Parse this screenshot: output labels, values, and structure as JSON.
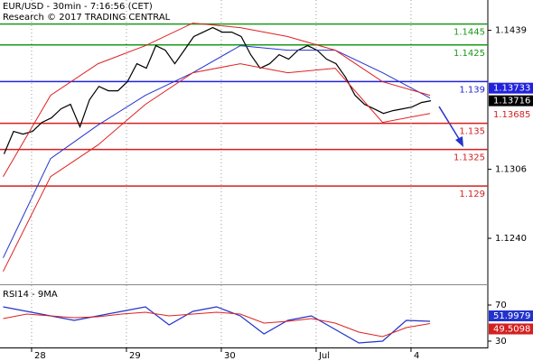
{
  "chart_data": [
    {
      "type": "line",
      "title": "EUR/USD - 30min - 7:16:56 (CET)",
      "subtitle": "Research © 2017 TRADING CENTRAL",
      "xlim": [
        -0.333,
        4.81
      ],
      "ylim": [
        1.1196,
        1.1468
      ],
      "yticks": [
        {
          "value": 1.124,
          "label": "1.1240"
        },
        1.1306,
        1.1439
      ],
      "series": [
        {
          "color": "#000000",
          "x": [
            -0.29,
            -0.19,
            -0.09,
            0.01,
            0.11,
            0.21,
            0.31,
            0.41,
            0.51,
            0.61,
            0.71,
            0.81,
            0.91,
            1.01,
            1.11,
            1.21,
            1.31,
            1.41,
            1.51,
            1.61,
            1.71,
            1.81,
            1.91,
            2.01,
            2.11,
            2.21,
            2.31,
            2.41,
            2.51,
            2.61,
            2.71,
            2.81,
            2.91,
            3.01,
            3.11,
            3.21,
            3.31,
            3.41,
            3.51,
            3.61,
            3.71,
            3.81,
            3.91,
            4.01,
            4.11,
            4.21
          ],
          "values": [
            1.13207,
            1.13423,
            1.13397,
            1.13423,
            1.13509,
            1.13552,
            1.13639,
            1.13682,
            1.13466,
            1.13725,
            1.13854,
            1.13811,
            1.13811,
            1.13898,
            1.1407,
            1.14027,
            1.14243,
            1.142,
            1.1407,
            1.142,
            1.1433,
            1.14373,
            1.14416,
            1.14373,
            1.14373,
            1.1433,
            1.14157,
            1.14027,
            1.1407,
            1.14157,
            1.14114,
            1.142,
            1.14243,
            1.142,
            1.14114,
            1.1407,
            1.13941,
            1.13768,
            1.13682,
            1.13639,
            1.13595,
            1.13621,
            1.13639,
            1.13656,
            1.13699,
            1.13716
          ]
        },
        {
          "color": "#2233cc",
          "x": [
            -0.3,
            0.2,
            0.7,
            1.2,
            1.7,
            2.2,
            2.7,
            3.2,
            3.7,
            4.2
          ],
          "values": [
            1.12213,
            1.13163,
            1.13483,
            1.13768,
            1.13984,
            1.14243,
            1.142,
            1.142,
            1.13984,
            1.13742
          ]
        },
        {
          "color": "#e02020",
          "x": [
            -0.3,
            0.2,
            0.7,
            1.2,
            1.7,
            2.2,
            2.7,
            3.2,
            3.7,
            4.2
          ],
          "values": [
            1.1299,
            1.13768,
            1.1407,
            1.14243,
            1.14459,
            1.14416,
            1.1433,
            1.142,
            1.13898,
            1.13768
          ]
        },
        {
          "color": "#e02020",
          "x": [
            -0.3,
            0.2,
            0.7,
            1.2,
            1.7,
            2.2,
            2.7,
            3.2,
            3.7,
            4.2
          ],
          "values": [
            1.12083,
            1.1299,
            1.13293,
            1.13682,
            1.13984,
            1.1407,
            1.13984,
            1.14027,
            1.13509,
            1.13595
          ]
        }
      ],
      "hlines": [
        {
          "value": 1.1445,
          "color": "#1a9a1a"
        },
        {
          "value": 1.1425,
          "color": "#1a9a1a"
        },
        {
          "value": 1.139,
          "color": "#2222dd"
        },
        {
          "value": 1.135,
          "color": "#d42020"
        },
        {
          "value": 1.1325,
          "color": "#d42020"
        },
        {
          "value": 1.129,
          "color": "#d42020"
        }
      ],
      "last_values": [
        {
          "value": 1.13733,
          "color": "#2222dd",
          "boxed": true
        },
        {
          "value": 1.13716,
          "color": "#000000",
          "boxed": true
        },
        {
          "value": 1.13685,
          "color": "#d42020",
          "boxed": false
        }
      ]
    },
    {
      "type": "line",
      "title": "RSI14 - 9MA",
      "xlim": [
        -0.333,
        4.81
      ],
      "ylim": [
        23,
        90
      ],
      "yticks": [
        30,
        70
      ],
      "xticks": [
        {
          "value": 0,
          "label": "28"
        },
        {
          "value": 1,
          "label": "29"
        },
        {
          "value": 2,
          "label": "30"
        },
        {
          "value": 3,
          "label": "Jul"
        },
        {
          "value": 4,
          "label": "4"
        }
      ],
      "grid": true,
      "series": [
        {
          "color": "#2233cc",
          "x": [
            -0.3,
            -0.05,
            0.2,
            0.45,
            0.7,
            0.95,
            1.2,
            1.45,
            1.7,
            1.95,
            2.2,
            2.45,
            2.7,
            2.95,
            3.2,
            3.45,
            3.7,
            3.95,
            4.2
          ],
          "values": [
            68,
            63,
            58,
            53,
            58,
            63,
            68,
            48,
            63,
            68,
            58,
            38,
            53,
            58,
            43,
            28,
            30,
            53,
            52
          ]
        },
        {
          "color": "#e02020",
          "x": [
            -0.3,
            -0.05,
            0.2,
            0.45,
            0.7,
            0.95,
            1.2,
            1.45,
            1.7,
            1.95,
            2.2,
            2.45,
            2.7,
            2.95,
            3.2,
            3.45,
            3.7,
            3.95,
            4.2
          ],
          "values": [
            55,
            60,
            58,
            56,
            57,
            60,
            62,
            58,
            60,
            62,
            60,
            50,
            52,
            55,
            50,
            40,
            35,
            45,
            49.5
          ]
        }
      ],
      "last_values": [
        {
          "value": 51.9979,
          "color": "#2233cc",
          "boxed": true
        },
        {
          "value": 49.5098,
          "color": "#d42020",
          "boxed": true
        }
      ]
    }
  ]
}
